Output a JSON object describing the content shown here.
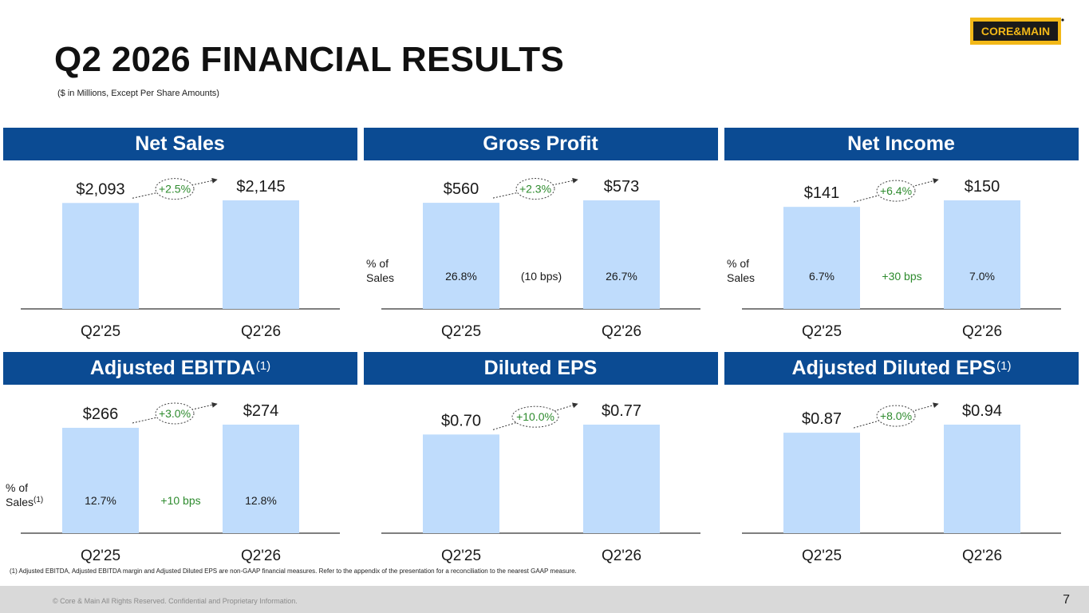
{
  "title": "Q2 2026 FINANCIAL RESULTS",
  "subtitle": "($ in Millions, Except Per Share Amounts)",
  "logo_text": "CORE&MAIN",
  "footnote": "(1) Adjusted EBITDA, Adjusted EBITDA margin and Adjusted Diluted EPS are non-GAAP financial measures. Refer to the appendix of the presentation for a reconciliation to the nearest GAAP measure.",
  "copyright": "© Core & Main  All Rights Reserved. Confidential and Proprietary Information.",
  "page_number": "7",
  "colors": {
    "header": "#0b4b93",
    "bar": "#bfdcfc",
    "growth": "#2e8b2e",
    "axis": "#555555"
  },
  "chart_data": [
    {
      "type": "bar",
      "title": "Net Sales",
      "sup": "",
      "categories": [
        "Q2'25",
        "Q2'26"
      ],
      "values": [
        2093,
        2145
      ],
      "value_labels": [
        "$2,093",
        "$2,145"
      ],
      "growth": "+2.5%",
      "margin_label": "",
      "margin_sup": "",
      "margins": [
        "",
        ""
      ],
      "margin_change": "",
      "margin_change_color": ""
    },
    {
      "type": "bar",
      "title": "Gross Profit",
      "sup": "",
      "categories": [
        "Q2'25",
        "Q2'26"
      ],
      "values": [
        560,
        573
      ],
      "value_labels": [
        "$560",
        "$573"
      ],
      "growth": "+2.3%",
      "margin_label": "% of\nSales",
      "margin_sup": "",
      "margins": [
        "26.8%",
        "26.7%"
      ],
      "margin_change": "(10 bps)",
      "margin_change_color": "#1a1a1a"
    },
    {
      "type": "bar",
      "title": "Net Income",
      "sup": "",
      "categories": [
        "Q2'25",
        "Q2'26"
      ],
      "values": [
        141,
        150
      ],
      "value_labels": [
        "$141",
        "$150"
      ],
      "growth": "+6.4%",
      "margin_label": "% of\nSales",
      "margin_sup": "",
      "margins": [
        "6.7%",
        "7.0%"
      ],
      "margin_change": "+30 bps",
      "margin_change_color": "#2e8b2e"
    },
    {
      "type": "bar",
      "title": "Adjusted EBITDA",
      "sup": "(1)",
      "categories": [
        "Q2'25",
        "Q2'26"
      ],
      "values": [
        266,
        274
      ],
      "value_labels": [
        "$266",
        "$274"
      ],
      "growth": "+3.0%",
      "margin_label": "% of\nSales",
      "margin_sup": "(1)",
      "margins": [
        "12.7%",
        "12.8%"
      ],
      "margin_change": "+10 bps",
      "margin_change_color": "#2e8b2e"
    },
    {
      "type": "bar",
      "title": "Diluted EPS",
      "sup": "",
      "categories": [
        "Q2'25",
        "Q2'26"
      ],
      "values": [
        0.7,
        0.77
      ],
      "value_labels": [
        "$0.70",
        "$0.77"
      ],
      "growth": "+10.0%",
      "margin_label": "",
      "margin_sup": "",
      "margins": [
        "",
        ""
      ],
      "margin_change": "",
      "margin_change_color": ""
    },
    {
      "type": "bar",
      "title": "Adjusted Diluted EPS",
      "sup": "(1)",
      "categories": [
        "Q2'25",
        "Q2'26"
      ],
      "values": [
        0.87,
        0.94
      ],
      "value_labels": [
        "$0.87",
        "$0.94"
      ],
      "growth": "+8.0%",
      "margin_label": "",
      "margin_sup": "",
      "margins": [
        "",
        ""
      ],
      "margin_change": "",
      "margin_change_color": ""
    }
  ]
}
